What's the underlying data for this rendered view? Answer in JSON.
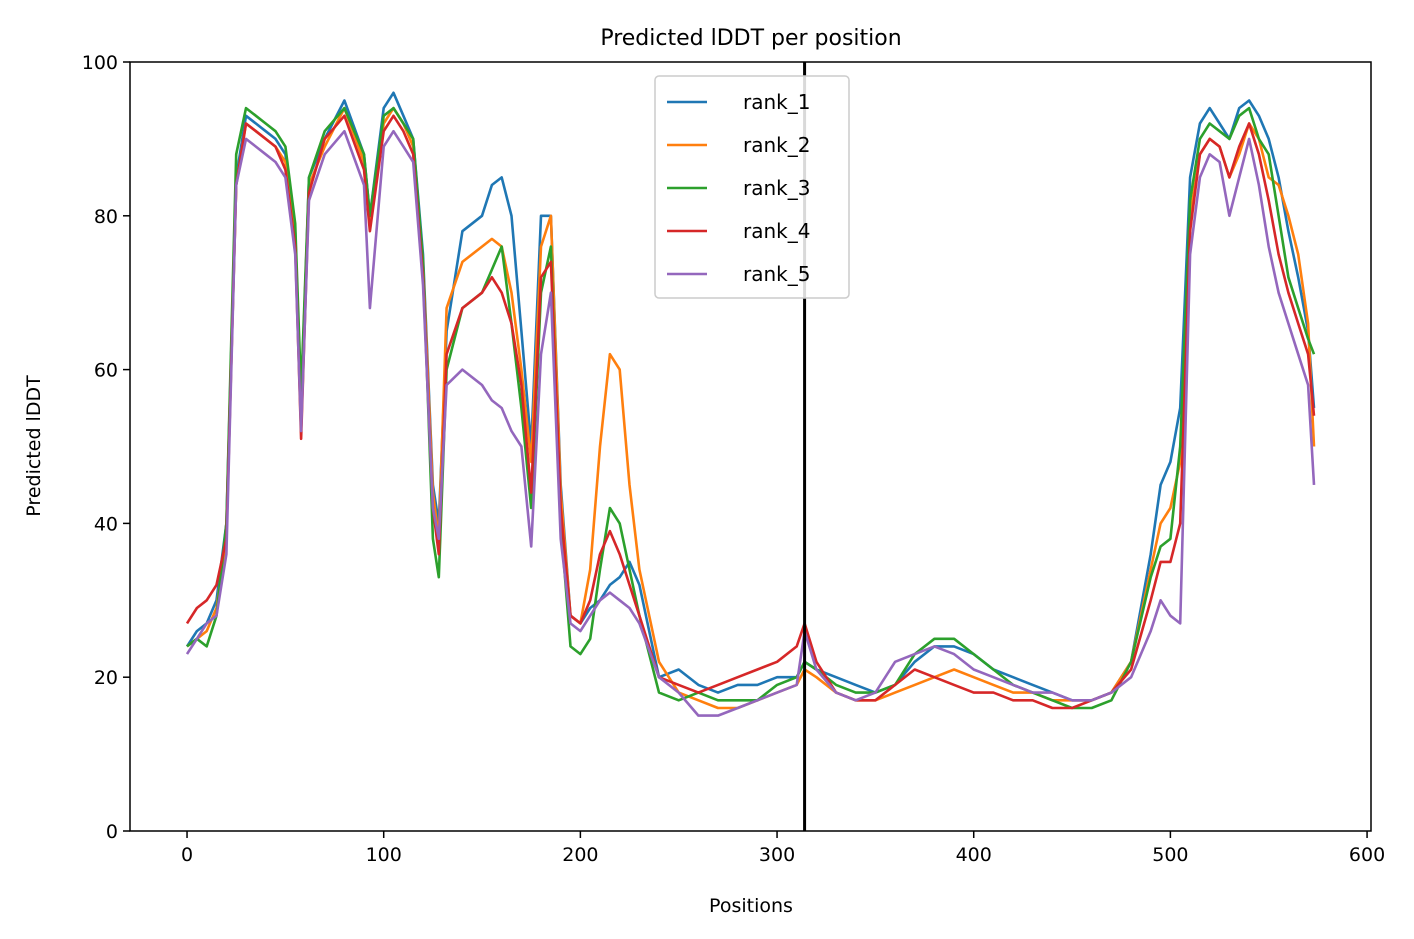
{
  "chart_data": {
    "type": "line",
    "title": "Predicted lDDT per position",
    "xlabel": "Positions",
    "ylabel": "Predicted lDDT",
    "xlim": [
      -29,
      602
    ],
    "ylim": [
      0,
      100
    ],
    "xticks": [
      0,
      100,
      200,
      300,
      400,
      500,
      600
    ],
    "yticks": [
      0,
      20,
      40,
      60,
      80,
      100
    ],
    "grid": false,
    "legend_position": "upper-center",
    "vline_x": 314,
    "vline_color": "#000000",
    "x": [
      0,
      5,
      10,
      15,
      20,
      25,
      30,
      35,
      40,
      45,
      50,
      55,
      58,
      62,
      70,
      80,
      90,
      93,
      100,
      105,
      110,
      115,
      120,
      125,
      128,
      132,
      140,
      150,
      155,
      160,
      165,
      170,
      175,
      180,
      185,
      190,
      195,
      200,
      205,
      210,
      215,
      220,
      225,
      230,
      240,
      250,
      260,
      270,
      280,
      290,
      300,
      310,
      314,
      320,
      330,
      340,
      350,
      360,
      370,
      380,
      390,
      400,
      410,
      420,
      430,
      440,
      450,
      460,
      470,
      480,
      490,
      495,
      500,
      505,
      510,
      515,
      520,
      525,
      530,
      535,
      540,
      545,
      550,
      555,
      560,
      565,
      570,
      573
    ],
    "series": [
      {
        "name": "rank_1",
        "color": "#1f77b4",
        "values": [
          24,
          26,
          27,
          30,
          40,
          85,
          93,
          92,
          91,
          90,
          88,
          78,
          55,
          85,
          90,
          95,
          88,
          80,
          94,
          96,
          93,
          90,
          75,
          45,
          40,
          65,
          78,
          80,
          84,
          85,
          80,
          65,
          50,
          80,
          80,
          45,
          28,
          27,
          29,
          30,
          32,
          33,
          35,
          32,
          20,
          21,
          19,
          18,
          19,
          19,
          20,
          20,
          22,
          21,
          20,
          19,
          18,
          19,
          22,
          24,
          24,
          23,
          21,
          20,
          19,
          18,
          17,
          17,
          18,
          22,
          36,
          45,
          48,
          55,
          85,
          92,
          94,
          92,
          90,
          94,
          95,
          93,
          90,
          85,
          78,
          72,
          65,
          55
        ]
      },
      {
        "name": "rank_2",
        "color": "#ff7f0e",
        "values": [
          24,
          25,
          26,
          29,
          38,
          84,
          92,
          91,
          90,
          89,
          87,
          77,
          56,
          84,
          89,
          94,
          87,
          79,
          92,
          94,
          92,
          89,
          74,
          44,
          38,
          68,
          74,
          76,
          77,
          76,
          70,
          60,
          48,
          76,
          80,
          44,
          28,
          27,
          34,
          50,
          62,
          60,
          45,
          34,
          22,
          18,
          17,
          16,
          16,
          17,
          18,
          19,
          21,
          20,
          18,
          17,
          17,
          18,
          19,
          20,
          21,
          20,
          19,
          18,
          18,
          17,
          17,
          17,
          18,
          22,
          34,
          40,
          42,
          48,
          80,
          88,
          90,
          89,
          85,
          88,
          92,
          90,
          85,
          84,
          80,
          75,
          66,
          50
        ]
      },
      {
        "name": "rank_3",
        "color": "#2ca02c",
        "values": [
          24,
          25,
          24,
          28,
          40,
          88,
          94,
          93,
          92,
          91,
          89,
          79,
          57,
          85,
          91,
          94,
          88,
          80,
          93,
          94,
          92,
          90,
          74,
          38,
          33,
          60,
          68,
          70,
          73,
          76,
          66,
          55,
          42,
          70,
          76,
          40,
          24,
          23,
          25,
          34,
          42,
          40,
          34,
          28,
          18,
          17,
          18,
          17,
          17,
          17,
          19,
          20,
          22,
          21,
          19,
          18,
          18,
          19,
          23,
          25,
          25,
          23,
          21,
          19,
          18,
          17,
          16,
          16,
          17,
          22,
          33,
          37,
          38,
          50,
          82,
          90,
          92,
          91,
          90,
          93,
          94,
          90,
          88,
          80,
          72,
          68,
          64,
          62
        ]
      },
      {
        "name": "rank_4",
        "color": "#d62728",
        "values": [
          27,
          29,
          30,
          32,
          38,
          84,
          92,
          91,
          90,
          89,
          86,
          76,
          51,
          83,
          90,
          93,
          86,
          78,
          91,
          93,
          91,
          88,
          72,
          42,
          36,
          62,
          68,
          70,
          72,
          70,
          66,
          58,
          44,
          72,
          74,
          42,
          28,
          27,
          30,
          36,
          39,
          36,
          32,
          28,
          20,
          19,
          18,
          19,
          20,
          21,
          22,
          24,
          27,
          22,
          18,
          17,
          17,
          19,
          21,
          20,
          19,
          18,
          18,
          17,
          17,
          16,
          16,
          17,
          18,
          21,
          30,
          35,
          35,
          40,
          78,
          88,
          90,
          89,
          85,
          89,
          92,
          88,
          82,
          75,
          70,
          66,
          62,
          54
        ]
      },
      {
        "name": "rank_5",
        "color": "#9467bd",
        "values": [
          23,
          25,
          27,
          28,
          36,
          84,
          90,
          89,
          88,
          87,
          85,
          75,
          52,
          82,
          88,
          91,
          84,
          68,
          89,
          91,
          89,
          87,
          71,
          42,
          38,
          58,
          60,
          58,
          56,
          55,
          52,
          50,
          37,
          62,
          70,
          38,
          27,
          26,
          28,
          30,
          31,
          30,
          29,
          27,
          20,
          18,
          15,
          15,
          16,
          17,
          18,
          19,
          26,
          21,
          18,
          17,
          18,
          22,
          23,
          24,
          23,
          21,
          20,
          19,
          18,
          18,
          17,
          17,
          18,
          20,
          26,
          30,
          28,
          27,
          75,
          85,
          88,
          87,
          80,
          85,
          90,
          84,
          76,
          70,
          66,
          62,
          58,
          45
        ]
      }
    ]
  }
}
